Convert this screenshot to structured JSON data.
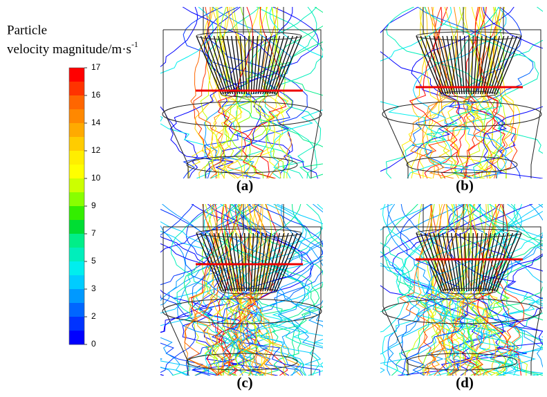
{
  "legend": {
    "title_lines": [
      "Particle",
      "velocity magnitude/m·s"
    ],
    "superscript": "-1",
    "ticks": [
      17,
      16,
      14,
      12,
      10,
      9,
      7,
      5,
      3,
      2,
      0
    ],
    "colors": [
      "#ff0000",
      "#ff3300",
      "#ff6600",
      "#ff8800",
      "#ffaa00",
      "#ffcc00",
      "#ffee00",
      "#ffff00",
      "#ccff00",
      "#88ff00",
      "#33ee00",
      "#00dd33",
      "#00ee88",
      "#00eebb",
      "#00eeee",
      "#00ccff",
      "#0099ff",
      "#0066ff",
      "#0033ff",
      "#0000ff"
    ]
  },
  "panels": [
    {
      "label": "(a)"
    },
    {
      "label": "(b)"
    },
    {
      "label": "(c)"
    },
    {
      "label": "(d)"
    }
  ]
}
